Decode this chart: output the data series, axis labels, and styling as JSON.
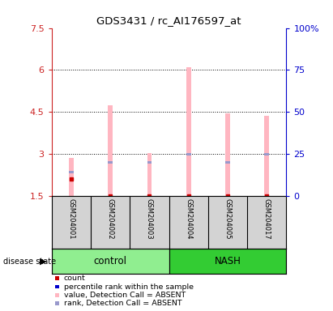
{
  "title": "GDS3431 / rc_AI176597_at",
  "samples": [
    "GSM204001",
    "GSM204002",
    "GSM204003",
    "GSM204004",
    "GSM204005",
    "GSM204017"
  ],
  "ylim_left": [
    1.5,
    7.5
  ],
  "yticks_left": [
    1.5,
    3.0,
    4.5,
    6.0,
    7.5
  ],
  "ytick_labels_left": [
    "1.5",
    "3",
    "4.5",
    "6",
    "7.5"
  ],
  "ylim_right": [
    0,
    100
  ],
  "yticks_right": [
    0,
    25,
    50,
    75,
    100
  ],
  "ytick_labels_right": [
    "0",
    "25",
    "50",
    "75",
    "100%"
  ],
  "bar_bottom": 1.5,
  "value_tops": [
    2.85,
    4.75,
    3.02,
    6.1,
    4.45,
    4.35
  ],
  "rank_values": [
    2.35,
    2.7,
    2.7,
    2.98,
    2.7,
    2.98
  ],
  "count_values": [
    2.1,
    1.5,
    1.5,
    1.5,
    1.5,
    1.5
  ],
  "bar_color_pink": "#ffb6c1",
  "bar_color_blue": "#9999cc",
  "count_marker_color": "#cc0000",
  "rank_marker_color": "#0000cc",
  "bar_width": 0.12,
  "grid_dotted_lines": [
    3.0,
    4.5,
    6.0
  ],
  "left_axis_color": "#cc2222",
  "right_axis_color": "#0000cc",
  "sample_area_color": "#d3d3d3",
  "control_color": "#90ee90",
  "nash_color": "#33cc33",
  "legend_items": [
    {
      "label": "count",
      "color": "#cc0000"
    },
    {
      "label": "percentile rank within the sample",
      "color": "#0000cc"
    },
    {
      "label": "value, Detection Call = ABSENT",
      "color": "#ffb6c1"
    },
    {
      "label": "rank, Detection Call = ABSENT",
      "color": "#9999cc"
    }
  ],
  "disease_state_label": "disease state"
}
